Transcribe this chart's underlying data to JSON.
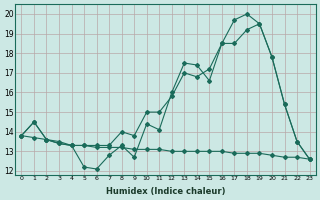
{
  "xlabel": "Humidex (Indice chaleur)",
  "background_color": "#cce8e4",
  "grid_color": "#b8a8a8",
  "line_color": "#1a6b5a",
  "xlim": [
    -0.5,
    23.5
  ],
  "ylim": [
    11.8,
    20.5
  ],
  "yticks": [
    12,
    13,
    14,
    15,
    16,
    17,
    18,
    19,
    20
  ],
  "xticks": [
    0,
    1,
    2,
    3,
    4,
    5,
    6,
    7,
    8,
    9,
    10,
    11,
    12,
    13,
    14,
    15,
    16,
    17,
    18,
    19,
    20,
    21,
    22,
    23
  ],
  "line1_x": [
    0,
    1,
    2,
    3,
    4,
    5,
    6,
    7,
    8,
    9,
    10,
    11,
    12,
    13,
    14,
    15,
    16,
    17,
    18,
    19,
    20,
    21,
    22,
    23
  ],
  "line1_y": [
    13.8,
    14.5,
    13.6,
    13.4,
    13.3,
    12.2,
    12.1,
    12.8,
    13.3,
    12.7,
    14.4,
    14.1,
    16.0,
    17.5,
    17.4,
    16.6,
    18.5,
    19.7,
    20.0,
    19.5,
    17.8,
    15.4,
    13.5,
    12.6
  ],
  "line2_x": [
    0,
    1,
    2,
    3,
    4,
    5,
    6,
    7,
    8,
    9,
    10,
    11,
    12,
    13,
    14,
    15,
    16,
    17,
    18,
    19,
    20,
    21,
    22,
    23
  ],
  "line2_y": [
    13.8,
    14.5,
    13.6,
    13.5,
    13.3,
    13.3,
    13.3,
    13.3,
    14.0,
    13.8,
    15.0,
    15.0,
    15.8,
    17.0,
    16.8,
    17.2,
    18.5,
    18.5,
    19.2,
    19.5,
    17.8,
    15.4,
    13.5,
    12.6
  ],
  "line3_x": [
    0,
    1,
    2,
    3,
    4,
    5,
    6,
    7,
    8,
    9,
    10,
    11,
    12,
    13,
    14,
    15,
    16,
    17,
    18,
    19,
    20,
    21,
    22,
    23
  ],
  "line3_y": [
    13.8,
    13.7,
    13.6,
    13.4,
    13.3,
    13.3,
    13.2,
    13.2,
    13.2,
    13.1,
    13.1,
    13.1,
    13.0,
    13.0,
    13.0,
    13.0,
    13.0,
    12.9,
    12.9,
    12.9,
    12.8,
    12.7,
    12.7,
    12.6
  ]
}
